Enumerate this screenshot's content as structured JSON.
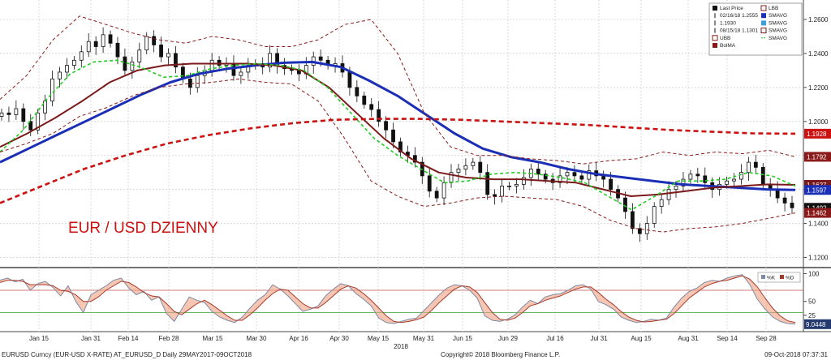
{
  "chart_data": {
    "type": "line",
    "title": "EUR / USD DZIENNY",
    "colors": {
      "candle_body": "#111111",
      "smavg_blue": "#1a2fb5",
      "smavg_maroon": "#7a1a1a",
      "smavg_green": "#22cc22",
      "bollinger": "#8b1a1a",
      "bolma_red": "#cc1111",
      "grid": "#d8d8d8",
      "stoch_k": "#7b8aa6",
      "stoch_d": "#a63a2a",
      "stoch_fill": "#f2a080"
    },
    "main_panel": {
      "ylim": [
        1.115,
        1.27
      ],
      "y_ticks": [
        "1.2600",
        "1.2400",
        "1.2200",
        "1.2000",
        "1.1800",
        "1.1600",
        "1.1400",
        "1.1200"
      ],
      "y_tick_values": [
        1.26,
        1.24,
        1.22,
        1.2,
        1.18,
        1.16,
        1.14,
        1.12
      ],
      "price_tags": [
        {
          "label": "1.1928",
          "value": 1.1928,
          "color": "#cc1111"
        },
        {
          "label": "1.1792",
          "value": 1.1792,
          "color": "#8b1a1a"
        },
        {
          "label": "1.1627",
          "value": 1.1627,
          "color": "#7a1a1a"
        },
        {
          "label": "1.1597",
          "value": 1.1597,
          "color": "#1a2fb5"
        },
        {
          "label": "1.1492",
          "value": 1.1492,
          "color": "#111111"
        },
        {
          "label": "1.1462",
          "value": 1.1462,
          "color": "#8b1a1a"
        }
      ],
      "series": [
        {
          "name": "Last Price",
          "style": "candles",
          "closes": [
            1.205,
            1.204,
            1.2075,
            1.2,
            1.195,
            1.205,
            1.212,
            1.225,
            1.229,
            1.233,
            1.236,
            1.241,
            1.247,
            1.244,
            1.251,
            1.246,
            1.238,
            1.23,
            1.235,
            1.242,
            1.25,
            1.245,
            1.238,
            1.24,
            1.232,
            1.225,
            1.22,
            1.227,
            1.23,
            1.236,
            1.233,
            1.234,
            1.227,
            1.229,
            1.233,
            1.234,
            1.232,
            1.24,
            1.233,
            1.231,
            1.23,
            1.228,
            1.233,
            1.238,
            1.236,
            1.233,
            1.234,
            1.229,
            1.22,
            1.215,
            1.21,
            1.207,
            1.2,
            1.195,
            1.188,
            1.182,
            1.18,
            1.176,
            1.168,
            1.159,
            1.155,
            1.164,
            1.17,
            1.172,
            1.174,
            1.176,
            1.17,
            1.157,
            1.156,
            1.162,
            1.162,
            1.163,
            1.167,
            1.172,
            1.169,
            1.166,
            1.164,
            1.168,
            1.17,
            1.168,
            1.166,
            1.171,
            1.168,
            1.166,
            1.16,
            1.155,
            1.147,
            1.137,
            1.134,
            1.14,
            1.15,
            1.154,
            1.16,
            1.162,
            1.166,
            1.169,
            1.168,
            1.164,
            1.16,
            1.163,
            1.165,
            1.166,
            1.17,
            1.176,
            1.173,
            1.163,
            1.16,
            1.155,
            1.152,
            1.1492
          ]
        },
        {
          "name": "SMAVG (blue)",
          "style": "line",
          "color": "#1a2fb5",
          "width": 3,
          "values": [
            1.176,
            1.184,
            1.192,
            1.2,
            1.208,
            1.216,
            1.223,
            1.228,
            1.231,
            1.233,
            1.2345,
            1.235,
            1.232,
            1.224,
            1.215,
            1.204,
            1.193,
            1.184,
            1.179,
            1.176,
            1.172,
            1.169,
            1.167,
            1.165,
            1.163,
            1.162,
            1.161,
            1.16,
            1.1597
          ]
        },
        {
          "name": "SMAVG (maroon)",
          "style": "line",
          "color": "#7a1a1a",
          "width": 2,
          "values": [
            1.185,
            1.193,
            1.202,
            1.212,
            1.223,
            1.23,
            1.233,
            1.234,
            1.234,
            1.234,
            1.233,
            1.23,
            1.22,
            1.205,
            1.19,
            1.178,
            1.17,
            1.167,
            1.166,
            1.166,
            1.165,
            1.164,
            1.16,
            1.156,
            1.157,
            1.159,
            1.161,
            1.162,
            1.163,
            1.1627
          ]
        },
        {
          "name": "SMAVG (green)",
          "style": "dashed",
          "color": "#22cc22",
          "width": 1.6,
          "values": [
            1.182,
            1.195,
            1.213,
            1.228,
            1.235,
            1.236,
            1.232,
            1.226,
            1.227,
            1.231,
            1.233,
            1.234,
            1.233,
            1.23,
            1.22,
            1.205,
            1.19,
            1.18,
            1.172,
            1.164,
            1.165,
            1.169,
            1.17,
            1.169,
            1.167,
            1.164,
            1.156,
            1.148,
            1.156,
            1.165,
            1.165,
            1.166,
            1.17,
            1.168,
            1.162
          ]
        },
        {
          "name": "BolMA",
          "style": "dashed",
          "color": "#cc1111",
          "width": 2.6,
          "values": [
            1.152,
            1.162,
            1.172,
            1.18,
            1.187,
            1.192,
            1.196,
            1.199,
            1.201,
            1.2015,
            1.2015,
            1.201,
            1.2,
            1.199,
            1.198,
            1.1965,
            1.195,
            1.194,
            1.193,
            1.1928
          ]
        },
        {
          "name": "UBB",
          "style": "dashed",
          "color": "#8b1a1a",
          "width": 1,
          "values": [
            1.213,
            1.227,
            1.248,
            1.262,
            1.257,
            1.252,
            1.248,
            1.246,
            1.25,
            1.248,
            1.244,
            1.244,
            1.248,
            1.257,
            1.26,
            1.24,
            1.205,
            1.185,
            1.18,
            1.18,
            1.178,
            1.177,
            1.175,
            1.177,
            1.178,
            1.182,
            1.18,
            1.182,
            1.181,
            1.183,
            1.1792
          ]
        },
        {
          "name": "LBB",
          "style": "dashed",
          "color": "#8b1a1a",
          "width": 1,
          "values": [
            1.182,
            1.187,
            1.193,
            1.203,
            1.208,
            1.215,
            1.22,
            1.222,
            1.223,
            1.225,
            1.223,
            1.222,
            1.212,
            1.19,
            1.165,
            1.156,
            1.15,
            1.152,
            1.155,
            1.156,
            1.155,
            1.154,
            1.15,
            1.142,
            1.137,
            1.135,
            1.137,
            1.138,
            1.14,
            1.143,
            1.1462
          ]
        }
      ],
      "legend": {
        "items": [
          "Last Price",
          "02/16/18 1.2555",
          "1.1930",
          "08/15/18 1.1301",
          "UBB",
          "BolMA",
          "LBB",
          "SMAVG",
          "SMAVG",
          "SMAVG",
          "SMAVG"
        ]
      }
    },
    "stochastic_panel": {
      "ylim": [
        0,
        105
      ],
      "y_ticks": [
        "100",
        "50",
        "25"
      ],
      "y_tick_values": [
        100,
        50,
        25
      ],
      "overbought": 70,
      "oversold": 30,
      "legend": [
        "%K",
        "%D"
      ],
      "last_value_label": "9.0448",
      "series": [
        {
          "name": "%K",
          "color": "#7b8aa6",
          "values": [
            88,
            92,
            85,
            90,
            70,
            82,
            86,
            75,
            60,
            78,
            50,
            30,
            62,
            70,
            78,
            88,
            92,
            74,
            62,
            68,
            52,
            58,
            28,
            14,
            36,
            58,
            52,
            48,
            32,
            22,
            16,
            12,
            22,
            38,
            52,
            62,
            80,
            72,
            60,
            46,
            32,
            36,
            42,
            60,
            72,
            82,
            78,
            64,
            54,
            42,
            20,
            12,
            10,
            14,
            18,
            20,
            34,
            48,
            62,
            74,
            80,
            78,
            70,
            56,
            24,
            16,
            14,
            18,
            26,
            40,
            52,
            46,
            58,
            62,
            64,
            70,
            78,
            80,
            72,
            50,
            44,
            36,
            22,
            16,
            12,
            14,
            18,
            16,
            20,
            40,
            56,
            68,
            74,
            84,
            88,
            86,
            92,
            96,
            98,
            80,
            54,
            36,
            22,
            14,
            10,
            9
          ]
        },
        {
          "name": "%D",
          "color": "#a63a2a",
          "values": [
            84,
            88,
            88,
            86,
            80,
            80,
            80,
            78,
            70,
            68,
            62,
            50,
            50,
            58,
            70,
            78,
            86,
            84,
            76,
            66,
            60,
            58,
            46,
            32,
            26,
            36,
            46,
            52,
            44,
            34,
            24,
            16,
            16,
            26,
            38,
            52,
            64,
            72,
            70,
            58,
            46,
            38,
            38,
            48,
            60,
            72,
            78,
            74,
            64,
            52,
            38,
            24,
            14,
            12,
            14,
            17,
            22,
            34,
            48,
            60,
            72,
            78,
            76,
            66,
            48,
            30,
            18,
            16,
            20,
            30,
            42,
            46,
            52,
            56,
            60,
            66,
            72,
            76,
            76,
            66,
            54,
            44,
            32,
            22,
            16,
            13,
            14,
            16,
            18,
            28,
            42,
            56,
            66,
            76,
            82,
            86,
            88,
            92,
            96,
            90,
            76,
            56,
            38,
            24,
            15,
            12
          ]
        }
      ]
    },
    "x_axis": {
      "labels": [
        "Jan 15",
        "Jan 31",
        "Feb 14",
        "Feb 28",
        "Mar 15",
        "Mar 30",
        "Apr 16",
        "Apr 30",
        "May 15",
        "May 31",
        "Jun 15",
        "Jun 29",
        "Jul 16",
        "Jul 31",
        "Aug 15",
        "Aug 31",
        "Sep 14",
        "Sep 28"
      ],
      "year_label": "2018"
    },
    "annotation": {
      "text": "EUR / USD DZIENNY",
      "color": "#cc1111"
    }
  },
  "footer": {
    "left": "EURUSD Curncy (EUR-USD X-RATE) AT_EURUSD_D  Daily 29MAY2017-09OCT2018",
    "center": "Copyright© 2018 Bloomberg Finance L.P.",
    "right": "09-Oct-2018 07:37:31"
  }
}
